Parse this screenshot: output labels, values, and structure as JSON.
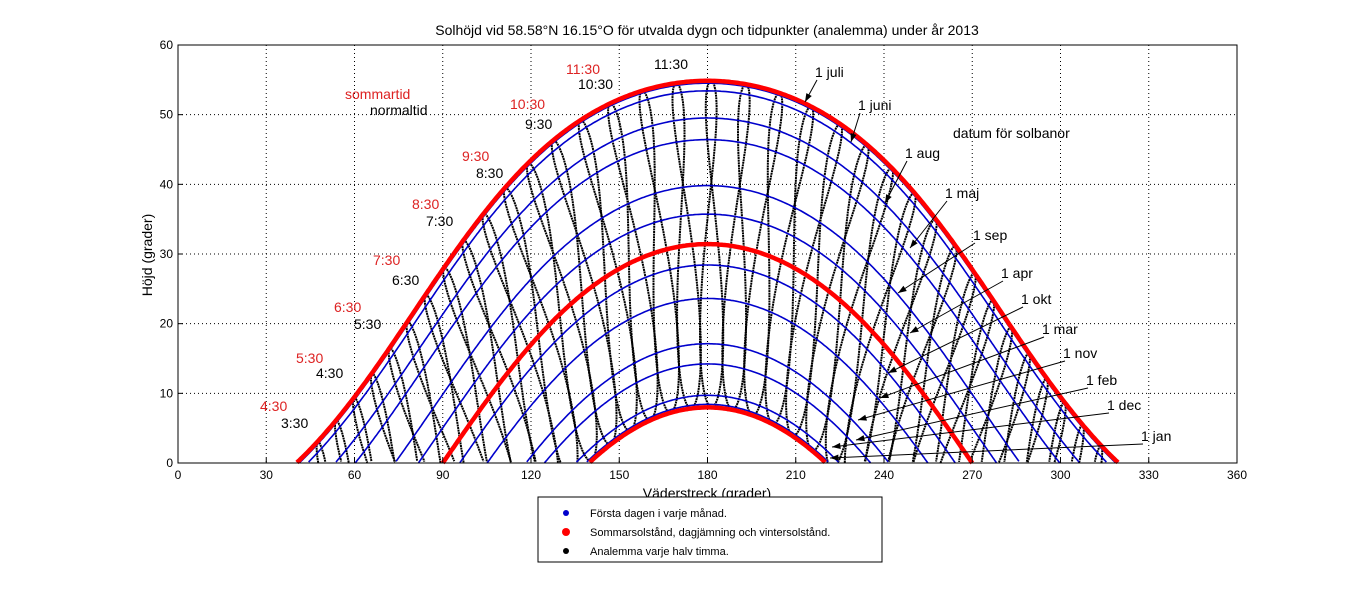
{
  "chart_data": {
    "type": "line",
    "title": "Solhöjd vid 58.58°N 16.15°O för utvalda dygn och tidpunkter (analemma) under år 2013",
    "xlabel": "Väderstreck (grader)",
    "ylabel": "Höjd (grader)",
    "xlim": [
      0,
      360
    ],
    "ylim": [
      0,
      60
    ],
    "xticks": [
      "0",
      "30",
      "60",
      "90",
      "120",
      "150",
      "180",
      "210",
      "240",
      "270",
      "300",
      "330",
      "360"
    ],
    "yticks": [
      "0",
      "10",
      "20",
      "30",
      "40",
      "50",
      "60"
    ],
    "grid": true,
    "latitude": 58.58,
    "longitude": 16.15,
    "timezone_meridian": 15,
    "month_paths": [
      {
        "name": "1 jan",
        "declination": -23.0
      },
      {
        "name": "1 feb",
        "declination": -17.2
      },
      {
        "name": "1 mar",
        "declination": -7.8
      },
      {
        "name": "1 apr",
        "declination": 4.3
      },
      {
        "name": "1 maj",
        "declination": 15.0
      },
      {
        "name": "1 juni",
        "declination": 22.0
      },
      {
        "name": "1 juli",
        "declination": 23.1
      },
      {
        "name": "1 aug",
        "declination": 18.1
      },
      {
        "name": "1 sep",
        "declination": 8.4
      },
      {
        "name": "1 okt",
        "declination": -3.0
      },
      {
        "name": "1 nov",
        "declination": -14.3
      },
      {
        "name": "1 dec",
        "declination": -21.7
      }
    ],
    "solstice_paths": [
      {
        "name": "Sommarsolstånd",
        "declination": 23.44
      },
      {
        "name": "Dagjämning",
        "declination": 0
      },
      {
        "name": "Vintersolstånd",
        "declination": -23.44
      }
    ],
    "analemma_times_normaltid": [
      "3:30",
      "4:00",
      "4:30",
      "5:00",
      "5:30",
      "6:00",
      "6:30",
      "7:00",
      "7:30",
      "8:00",
      "8:30",
      "9:00",
      "9:30",
      "10:00",
      "10:30",
      "11:00",
      "11:30",
      "12:00",
      "12:30",
      "13:00",
      "13:30",
      "14:00",
      "14:30",
      "15:00",
      "15:30",
      "16:00",
      "16:30",
      "17:00",
      "17:30",
      "18:00",
      "18:30",
      "19:00",
      "19:30",
      "20:00",
      "20:30"
    ],
    "time_labels": {
      "sommartid_title": "sommartid",
      "normaltid_title": "normaltid",
      "sommartid": [
        "4:30",
        "5:30",
        "6:30",
        "7:30",
        "8:30",
        "9:30",
        "10:30",
        "11:30"
      ],
      "normaltid": [
        "3:30",
        "4:30",
        "5:30",
        "6:30",
        "7:30",
        "8:30",
        "9:30",
        "10:30",
        "11:30"
      ]
    },
    "date_labels_title": "datum för solbanor",
    "date_labels": [
      "1 juli",
      "1 juni",
      "1 aug",
      "1 maj",
      "1 sep",
      "1 apr",
      "1 okt",
      "1 mar",
      "1 nov",
      "1 feb",
      "1 dec",
      "1 jan"
    ],
    "legend": {
      "placement": "bottom-center",
      "entries": [
        {
          "label": "Första dagen i varje månad.",
          "color": "#0000cc"
        },
        {
          "label": "Sommarsolstånd, dagjämning och vintersolstånd.",
          "color": "#ff0000"
        },
        {
          "label": "Analemma varje halv timma.",
          "color": "#000000"
        }
      ]
    },
    "colors": {
      "month": "#0000cc",
      "solstice": "#ff0000",
      "analemma": "#000000",
      "sommartid_text": "#dd2222"
    }
  }
}
